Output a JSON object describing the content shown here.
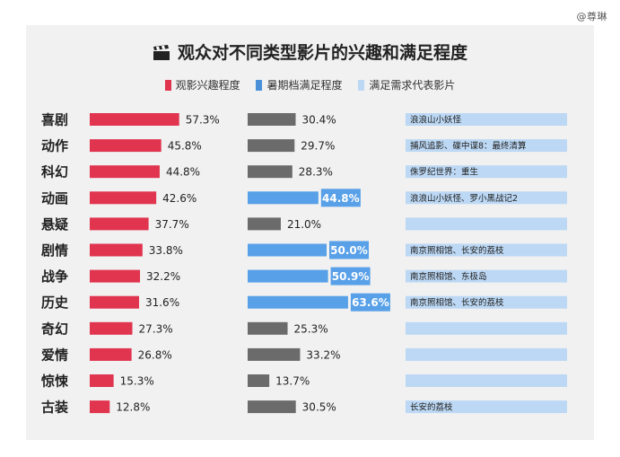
{
  "watermark": "@尊琳",
  "title": "观众对不同类型影片的兴趣和满足程度",
  "legend": [
    {
      "label": "观影兴趣程度",
      "color": "#e0344f"
    },
    {
      "label": "暑期档满足程度",
      "color": "#4a90d9"
    },
    {
      "label": "满足需求代表影片",
      "color": "#bcd8f4"
    }
  ],
  "colors": {
    "interest": "#e0344f",
    "satisfaction": "#6b6b6b",
    "satisfaction_highlight": "#58a0e8",
    "movie_band": "#bcd8f4"
  },
  "chart_data": {
    "type": "bar",
    "title": "观众对不同类型影片的兴趣和满足程度",
    "categories": [
      "喜剧",
      "动作",
      "科幻",
      "动画",
      "悬疑",
      "剧情",
      "战争",
      "历史",
      "奇幻",
      "爱情",
      "惊悚",
      "古装"
    ],
    "series": [
      {
        "name": "观影兴趣程度",
        "values": [
          57.3,
          45.8,
          44.8,
          42.6,
          37.7,
          33.8,
          32.2,
          31.6,
          27.3,
          26.8,
          15.3,
          12.8
        ]
      },
      {
        "name": "暑期档满足程度",
        "values": [
          30.4,
          29.7,
          28.3,
          44.8,
          21.0,
          50.0,
          50.9,
          63.6,
          25.3,
          33.2,
          13.7,
          30.5
        ]
      }
    ],
    "value_labels": {
      "interest": [
        "57.3%",
        "45.8%",
        "44.8%",
        "42.6%",
        "37.7%",
        "33.8%",
        "32.2%",
        "31.6%",
        "27.3%",
        "26.8%",
        "15.3%",
        "12.8%"
      ],
      "satisfaction": [
        "30.4%",
        "29.7%",
        "28.3%",
        "44.8%",
        "21.0%",
        "50.0%",
        "50.9%",
        "63.6%",
        "25.3%",
        "33.2%",
        "13.7%",
        "30.5%"
      ]
    },
    "highlighted_satisfaction": [
      false,
      false,
      false,
      true,
      false,
      true,
      true,
      true,
      false,
      false,
      false,
      false
    ],
    "movies": [
      "浪浪山小妖怪",
      "捕风追影、碟中谍8：最终清算",
      "侏罗纪世界：重生",
      "浪浪山小妖怪、罗小黑战记2",
      "",
      "南京照相馆、长安的荔枝",
      "南京照相馆、东极岛",
      "南京照相馆、长安的荔枝",
      "",
      "",
      "",
      "长安的荔枝"
    ]
  }
}
